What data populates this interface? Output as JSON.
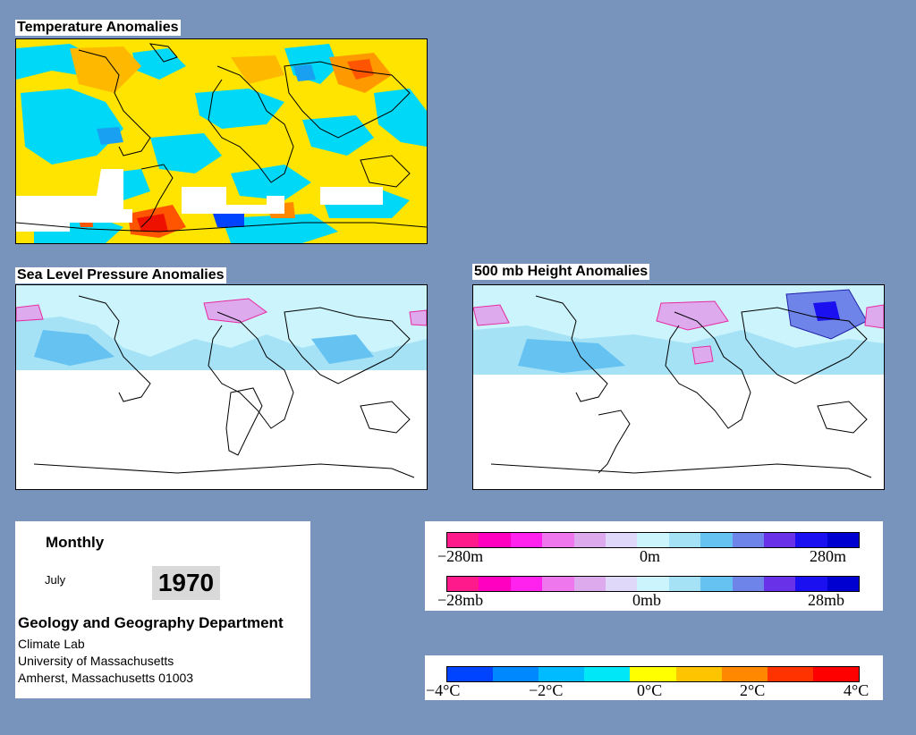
{
  "panels": {
    "temperature": {
      "title": "Temperature Anomalies"
    },
    "slp": {
      "title": "Sea Level Pressure Anomalies"
    },
    "height": {
      "title": "500 mb Height Anomalies"
    }
  },
  "info": {
    "frequency": "Monthly",
    "month": "July",
    "year": "1970",
    "department": "Geology and Geography Department",
    "lab": "Climate Lab",
    "university": "University of Massachusetts",
    "address": "Amherst, Massachusetts 01003"
  },
  "legends": {
    "height": {
      "min": "−280m",
      "mid": "0m",
      "max": "280m"
    },
    "pressure": {
      "min": "−28mb",
      "mid": "0mb",
      "max": "28mb"
    },
    "temperature": {
      "ticks": [
        "−4°C",
        "−2°C",
        "0°C",
        "2°C",
        "4°C"
      ]
    }
  },
  "colors": {
    "background": "#7894bd",
    "anomaly_scale": [
      "#ff1a8c",
      "#ff00c0",
      "#ff22ee",
      "#ee77ee",
      "#ddaaee",
      "#e0d8f8",
      "#ccf4fc",
      "#a6e2f6",
      "#66c2f0",
      "#6f84e8",
      "#6a32e8",
      "#1a10f0",
      "#0000d0"
    ],
    "temperature_scale": [
      "#0044ff",
      "#0088ff",
      "#00bbff",
      "#00e8f8",
      "#ffff00",
      "#ffc400",
      "#ff8800",
      "#ff3300",
      "#ff0000"
    ]
  }
}
